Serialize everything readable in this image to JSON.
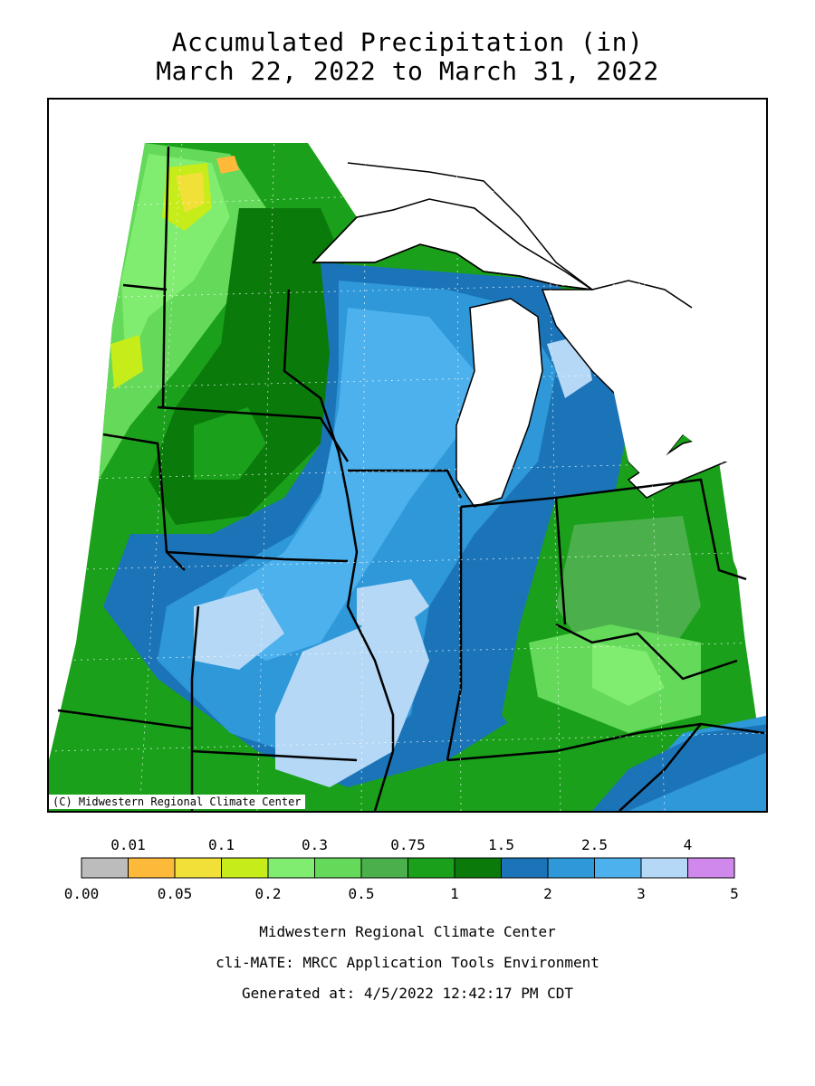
{
  "title": {
    "line1": "Accumulated Precipitation (in)",
    "line2": "March 22, 2022 to March 31, 2022"
  },
  "map": {
    "copyright": "(C) Midwestern Regional Climate Center"
  },
  "legend": {
    "top_labels": [
      "0.01",
      "0.1",
      "0.3",
      "0.75",
      "1.5",
      "2.5",
      "4"
    ],
    "bottom_labels": [
      "0.00",
      "0.05",
      "0.2",
      "0.5",
      "1",
      "2",
      "3",
      "5"
    ],
    "colors": [
      "#bcbcbc",
      "#fdb939",
      "#f0e038",
      "#c6ec1a",
      "#80ec70",
      "#64d95a",
      "#4bb04b",
      "#1aa01a",
      "#0a7a0a",
      "#1c74b8",
      "#2e98d9",
      "#4cb1ec",
      "#b4d8f6",
      "#d088ec"
    ]
  },
  "footer": {
    "line1": "Midwestern Regional Climate Center",
    "line2": "cli-MATE: MRCC Application Tools Environment",
    "line3": "Generated at: 4/5/2022 12:42:17 PM CDT"
  }
}
